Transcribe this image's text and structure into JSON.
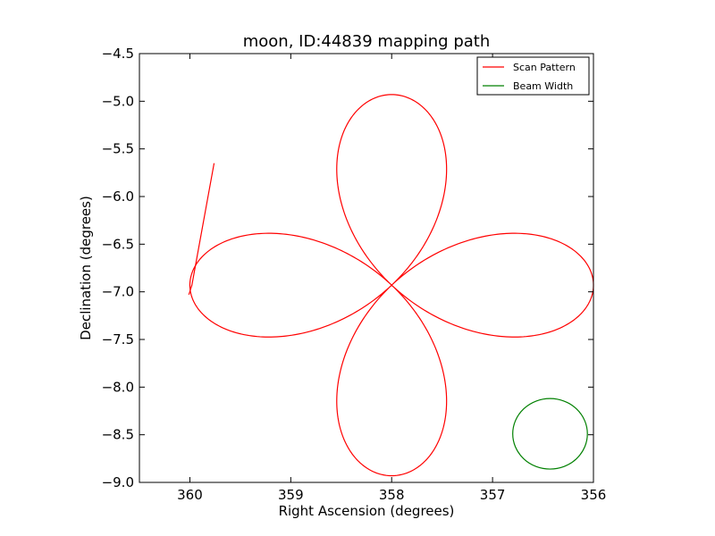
{
  "chart_data": {
    "type": "line",
    "title": "moon, ID:44839 mapping path",
    "xlabel": "Right Ascension (degrees)",
    "ylabel": "Declination (degrees)",
    "xlim": [
      360.5,
      356.0
    ],
    "ylim": [
      -9.0,
      -4.5
    ],
    "x_inverted": true,
    "grid": false,
    "legend_position": "top-right",
    "x_ticks": [
      360,
      359,
      358,
      357,
      356
    ],
    "x_tick_labels": [
      "360",
      "359",
      "358",
      "357",
      "356"
    ],
    "y_ticks": [
      -4.5,
      -5.0,
      -5.5,
      -6.0,
      -6.5,
      -7.0,
      -7.5,
      -8.0,
      -8.5,
      -9.0
    ],
    "y_tick_labels": [
      "−4.5",
      "−5.0",
      "−5.5",
      "−6.0",
      "−6.5",
      "−7.0",
      "−7.5",
      "−8.0",
      "−8.5",
      "−9.0"
    ],
    "series": [
      {
        "name": "Scan Pattern",
        "color": "#ff0000",
        "style": "rose-curve",
        "center": [
          358.0,
          -6.93
        ],
        "petal_reach_ra": 2.0,
        "petal_reach_dec": 2.0,
        "petal_tips": [
          [
            358.0,
            -4.93
          ],
          [
            356.0,
            -6.93
          ],
          [
            358.0,
            -8.93
          ],
          [
            360.0,
            -6.93
          ]
        ],
        "lead_in": [
          [
            359.76,
            -5.65
          ],
          [
            359.98,
            -6.93
          ],
          [
            360.01,
            -7.03
          ]
        ]
      },
      {
        "name": "Beam Width",
        "color": "#008000",
        "style": "circle",
        "center": [
          356.43,
          -8.49
        ],
        "radius_deg": 0.37
      }
    ]
  }
}
